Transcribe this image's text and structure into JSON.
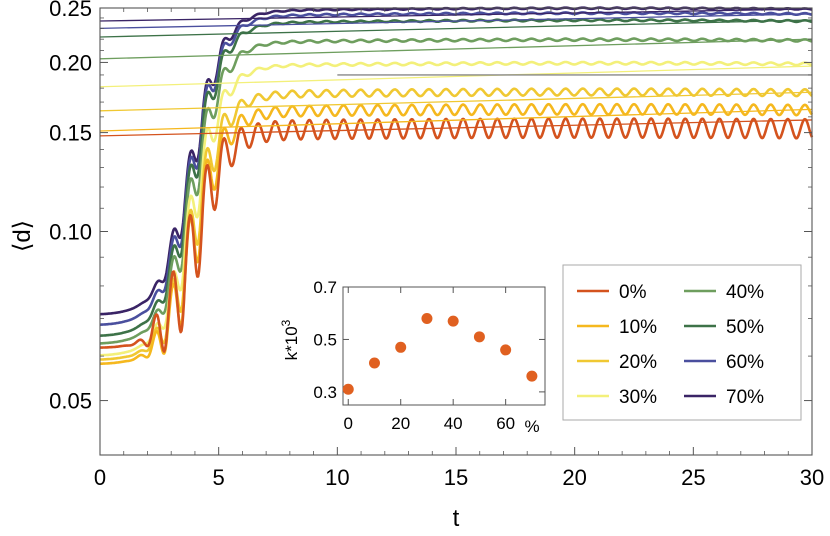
{
  "chart_data": [
    {
      "type": "line",
      "xlabel": "t",
      "ylabel": "⟨d⟩",
      "xlim": [
        0,
        30
      ],
      "ylim": [
        0.04,
        0.25
      ],
      "y_scale": "log",
      "xticks": [
        "0",
        "5",
        "10",
        "15",
        "20",
        "25",
        "30"
      ],
      "yticks": [
        "0.05",
        "0.10",
        "0.15",
        "0.20",
        "0.25"
      ],
      "grid": false,
      "legend_position": "bottom-right",
      "series": [
        {
          "name": "0%",
          "color": "#d4531e",
          "initial": 0.062,
          "plateau": 0.152,
          "osc_amp": 0.006,
          "fit_intercept": 0.148,
          "fit_value_at_30": 0.158
        },
        {
          "name": "10%",
          "color": "#f5b81e",
          "initial": 0.058,
          "plateau": 0.164,
          "osc_amp": 0.0035,
          "fit_intercept": 0.151,
          "fit_value_at_30": 0.165
        },
        {
          "name": "20%",
          "color": "#f0c832",
          "initial": 0.059,
          "plateau": 0.176,
          "osc_amp": 0.0025,
          "fit_intercept": 0.164,
          "fit_value_at_30": 0.177
        },
        {
          "name": "30%",
          "color": "#f3f07a",
          "initial": 0.06,
          "plateau": 0.198,
          "osc_amp": 0.001,
          "fit_intercept": 0.181,
          "fit_value_at_30": 0.197
        },
        {
          "name": "40%",
          "color": "#6e9e5e",
          "initial": 0.063,
          "plateau": 0.218,
          "osc_amp": 0.001,
          "fit_intercept": 0.203,
          "fit_value_at_30": 0.22
        },
        {
          "name": "50%",
          "color": "#3d7248",
          "initial": 0.065,
          "plateau": 0.236,
          "osc_amp": 0.0008,
          "fit_intercept": 0.222,
          "fit_value_at_30": 0.238
        },
        {
          "name": "60%",
          "color": "#4a4f9e",
          "initial": 0.068,
          "plateau": 0.243,
          "osc_amp": 0.0008,
          "fit_intercept": 0.23,
          "fit_value_at_30": 0.244
        },
        {
          "name": "70%",
          "color": "#3a2466",
          "initial": 0.071,
          "plateau": 0.248,
          "osc_amp": 0.0006,
          "fit_intercept": 0.237,
          "fit_value_at_30": 0.249
        }
      ],
      "reference_line": {
        "y": 0.19,
        "x_from": 10,
        "x_to": 30,
        "color": "#888888"
      }
    },
    {
      "type": "scatter",
      "xlabel": "%",
      "ylabel": "k*10",
      "ylabel_sup": "3",
      "xlim": [
        -2,
        75
      ],
      "ylim": [
        0.25,
        0.7
      ],
      "xticks": [
        "0",
        "20",
        "40",
        "60"
      ],
      "yticks": [
        "0.3",
        "0.5",
        "0.7"
      ],
      "color": "#e06020",
      "x": [
        0,
        10,
        20,
        30,
        40,
        50,
        60,
        70
      ],
      "y": [
        0.31,
        0.41,
        0.47,
        0.58,
        0.57,
        0.51,
        0.46,
        0.36
      ]
    }
  ]
}
